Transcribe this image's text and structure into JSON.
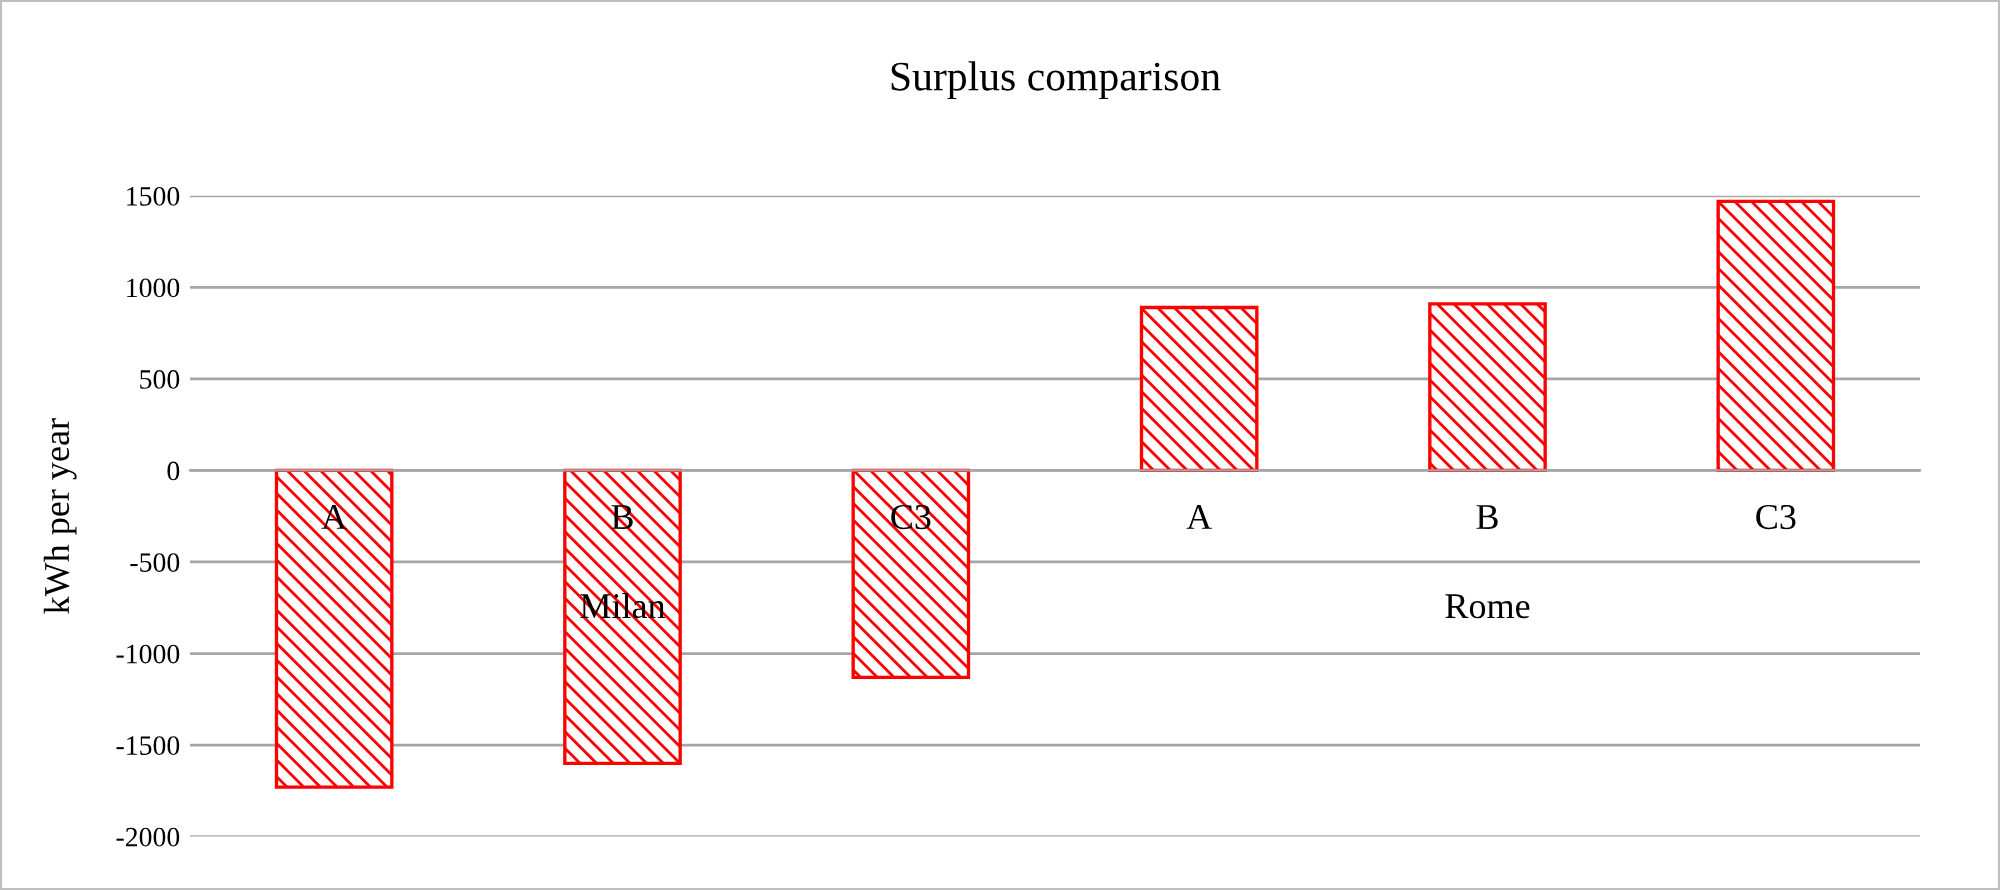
{
  "chart_data": {
    "type": "bar",
    "title": "Surplus comparison",
    "ylabel": "kWh per year",
    "categories": [
      "A",
      "B",
      "C3",
      "A",
      "B",
      "C3"
    ],
    "values": [
      -1730,
      -1600,
      -1130,
      890,
      910,
      1470
    ],
    "color": "#ff0000",
    "annotations": [
      "Milan",
      "Rome"
    ],
    "ylim": [
      -2000,
      1500
    ],
    "yticks": [
      -2000,
      -1500,
      -1000,
      -500,
      0,
      500,
      1000,
      1500
    ],
    "grid": "y"
  }
}
